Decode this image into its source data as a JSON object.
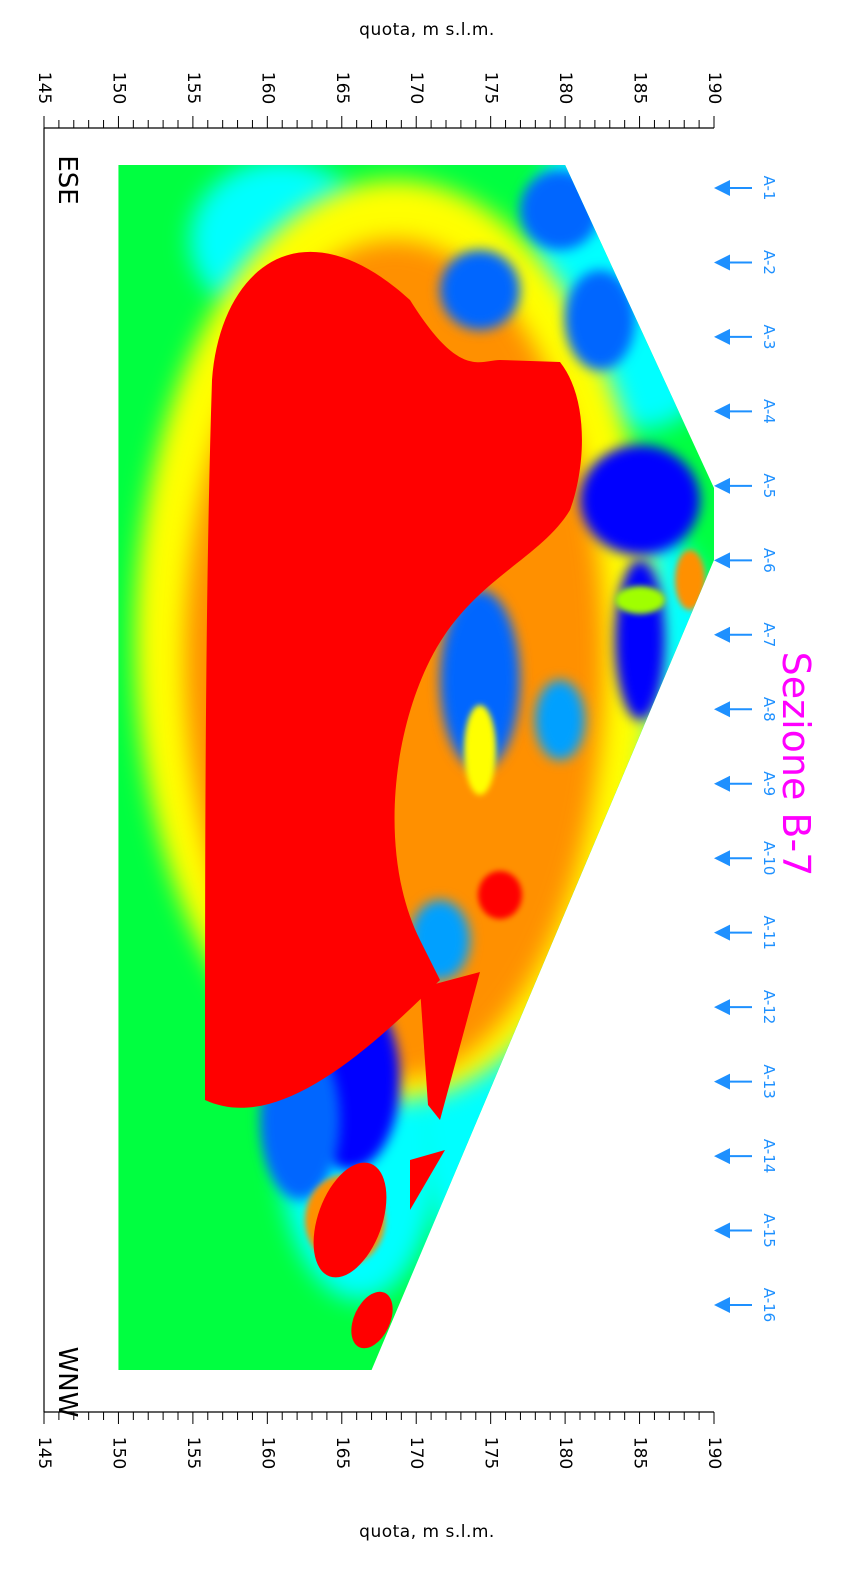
{
  "chart_data": {
    "type": "heatmap",
    "title": "Sezione B-7",
    "axis_label": "quota, m s.l.m.",
    "axis_min": 145,
    "axis_max": 190,
    "major_step": 5,
    "minor_step": 1,
    "tick_labels": [
      "145",
      "150",
      "155",
      "160",
      "165",
      "170",
      "175",
      "180",
      "185",
      "190"
    ],
    "orientation_labels": [
      "ESE",
      "WNW"
    ],
    "profile_labels": [
      "A-1",
      "A-2",
      "A-3",
      "A-4",
      "A-5",
      "A-6",
      "A-7",
      "A-8",
      "A-9",
      "A-10",
      "A-11",
      "A-12",
      "A-13",
      "A-14",
      "A-15",
      "A-16"
    ],
    "bottom_elevation": 150,
    "topography_profile": [
      {
        "station": "ESE",
        "elevation": 180
      },
      {
        "station": "A-5",
        "elevation": 190
      },
      {
        "station": "A-6",
        "elevation": 190
      },
      {
        "station": "WNW",
        "elevation": 167
      }
    ],
    "colorscale": [
      "#0000ff",
      "#0070ff",
      "#00ffff",
      "#00ff60",
      "#a0ff00",
      "#ffff00",
      "#ff8000",
      "#ff0000"
    ],
    "colors": {
      "title": "#ff00ff",
      "profile": "#1e90ff"
    }
  }
}
